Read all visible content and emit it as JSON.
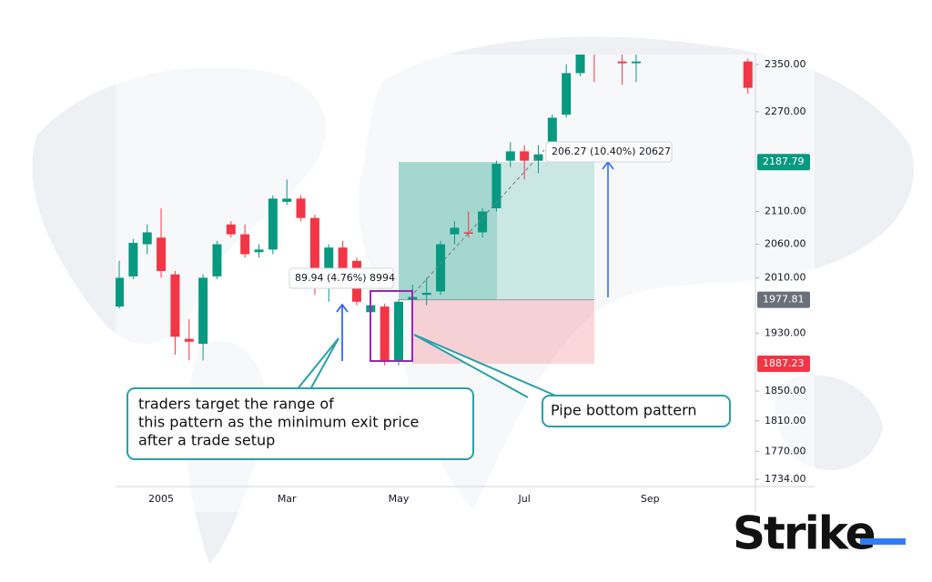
{
  "chart_data": {
    "type": "candlestick",
    "categories": [
      null,
      null,
      null,
      "2005",
      null,
      null,
      null,
      null,
      null,
      null,
      null,
      null,
      "Mar",
      null,
      null,
      null,
      null,
      null,
      null,
      null,
      "May",
      null,
      null,
      null,
      null,
      null,
      null,
      null,
      null,
      "Jul",
      null,
      null,
      null,
      null,
      null,
      null,
      null,
      null,
      "Sep",
      null,
      null,
      null,
      null,
      null,
      null,
      null
    ],
    "open": [
      1968,
      2012,
      2060,
      2070,
      2015,
      1922,
      1915,
      2012,
      2090,
      2075,
      2048,
      2052,
      2125,
      2130,
      2100,
      2005,
      2055,
      2035,
      1960,
      1968,
      1890,
      1978,
      1985,
      1990,
      2075,
      2078,
      2078,
      2115,
      2190,
      2205,
      2190,
      2210,
      2265,
      2335,
      2380,
      null,
      2355,
      2352,
      null,
      null,
      null,
      null,
      null,
      null,
      null,
      2355
    ],
    "high": [
      2035,
      2068,
      2090,
      2115,
      2020,
      1950,
      2015,
      2065,
      2095,
      2090,
      2060,
      2135,
      2160,
      2135,
      2105,
      2060,
      2065,
      2040,
      1975,
      1972,
      1978,
      2000,
      2010,
      2065,
      2095,
      2110,
      2115,
      2190,
      2220,
      2215,
      2215,
      2265,
      2350,
      2400,
      2400,
      null,
      2370,
      2370,
      null,
      null,
      null,
      null,
      null,
      null,
      null,
      2360
    ],
    "low": [
      1965,
      2008,
      2045,
      2010,
      1900,
      1892,
      1892,
      2008,
      2070,
      2040,
      2040,
      2045,
      2120,
      2095,
      1985,
      1975,
      2000,
      1970,
      1955,
      1885,
      1885,
      1970,
      1970,
      1985,
      2060,
      2070,
      2070,
      2110,
      2180,
      2160,
      2170,
      2205,
      2260,
      2330,
      2320,
      null,
      2315,
      2320,
      null,
      null,
      null,
      null,
      null,
      null,
      null,
      2300
    ],
    "close": [
      2010,
      2062,
      2078,
      2020,
      1925,
      1918,
      2010,
      2060,
      2075,
      2045,
      2052,
      2130,
      2130,
      2100,
      2010,
      2055,
      2010,
      1975,
      1970,
      1890,
      1975,
      1982,
      1988,
      2060,
      2085,
      2076,
      2110,
      2185,
      2205,
      2190,
      2200,
      2260,
      2335,
      2380,
      2375,
      null,
      2352,
      2355,
      null,
      null,
      null,
      null,
      null,
      null,
      null,
      2310
    ],
    "up_color": "#089981",
    "down_color": "#f23645",
    "log_scale": true,
    "ylim": [
      1725,
      2367
    ],
    "yticks": [
      {
        "value": 2350,
        "label": "2350.00"
      },
      {
        "value": 2270,
        "label": "2270.00"
      },
      {
        "value": 2110,
        "label": "2110.00"
      },
      {
        "value": 2060,
        "label": "2060.00"
      },
      {
        "value": 2010,
        "label": "2010.00"
      },
      {
        "value": 1930,
        "label": "1930.00"
      },
      {
        "value": 1850,
        "label": "1850.00"
      },
      {
        "value": 1810,
        "label": "1810.00"
      },
      {
        "value": 1770,
        "label": "1770.00"
      },
      {
        "value": 1734,
        "label": "1734.00"
      }
    ],
    "price_labels": [
      {
        "value": 2187.79,
        "color": "#089981"
      },
      {
        "value": 1977.81,
        "color": "#6b6f78"
      },
      {
        "value": 1887.23,
        "color": "#f23645"
      }
    ],
    "measure_labels": [
      "89.94 (4.76%) 8994",
      "206.27 (10.40%) 20627"
    ],
    "callouts": [
      {
        "lines": [
          "traders target the range of",
          "this pattern as the minimum exit price",
          "after a trade setup"
        ]
      },
      {
        "lines": [
          "Pipe bottom pattern"
        ]
      }
    ],
    "logo": "Strike"
  }
}
